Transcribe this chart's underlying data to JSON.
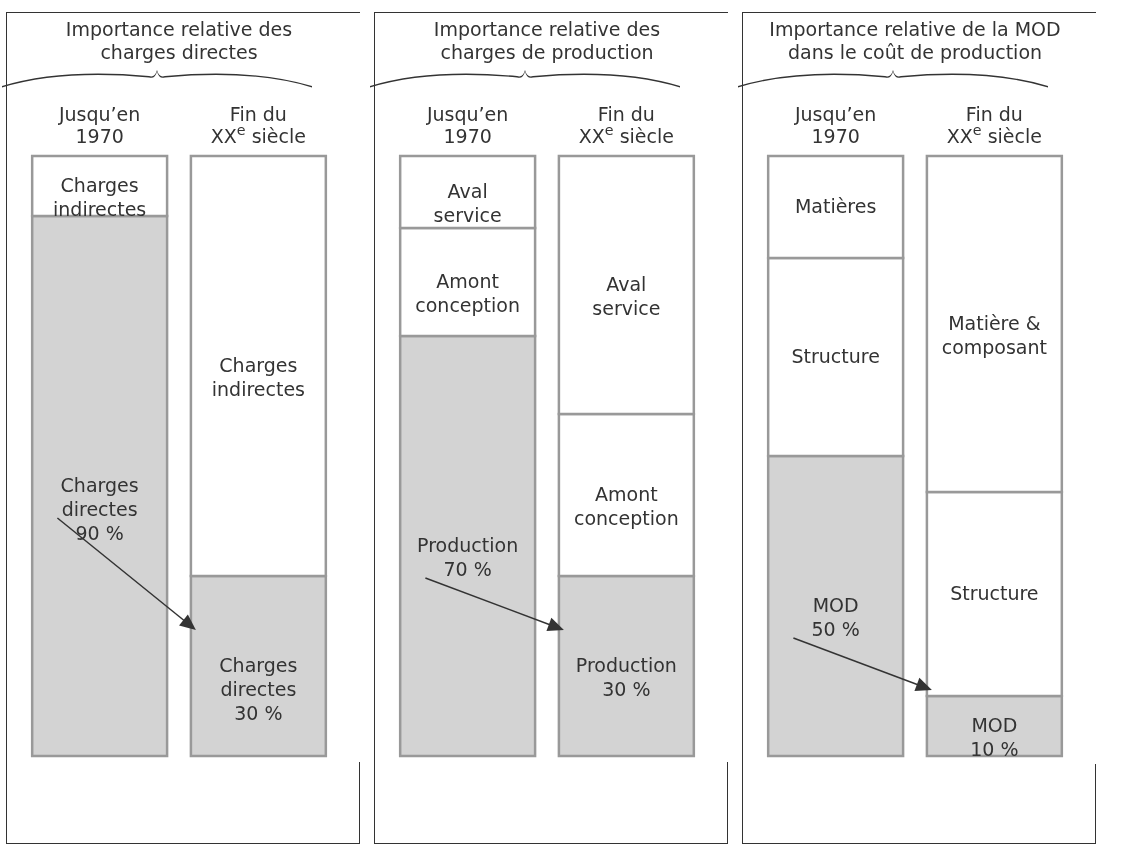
{
  "chart_data": [
    {
      "type": "bar",
      "stacked": true,
      "title": "Importance relative des\ncharges directes",
      "categories": [
        "Jusqu’en\n1970",
        "Fin du\nXX$^{e}$ siècle"
      ],
      "ylim": [
        0,
        100
      ],
      "tick_labels": "x",
      "series": [
        {
          "name": "Charges\ndirectes",
          "color": "#d3d3d3",
          "values": [
            90,
            30
          ],
          "value_labels": [
            "90 %",
            "30 %"
          ]
        },
        {
          "name": "Charges\nindirectes",
          "color": "#ffffff",
          "values": [
            10,
            70
          ]
        }
      ]
    },
    {
      "type": "bar",
      "stacked": true,
      "title": "Importance relative des\ncharges de production",
      "categories": [
        "Jusqu’en\n1970",
        "Fin du\nXX$^{e}$ siècle"
      ],
      "ylim": [
        0,
        100
      ],
      "tick_labels": "x",
      "series": [
        {
          "name": "Production",
          "color": "#d3d3d3",
          "values": [
            70,
            30
          ],
          "value_labels": [
            "70 %",
            "30 %"
          ]
        },
        {
          "name": "Amont\nconception",
          "color": "#ffffff",
          "values": [
            18,
            27
          ]
        },
        {
          "name": "Aval\nservice",
          "color": "#ffffff",
          "values": [
            12,
            43
          ]
        }
      ]
    },
    {
      "type": "bar",
      "stacked": true,
      "title": "Importance relative de la MOD\ndans le coût de production",
      "categories": [
        "Jusqu’en\n1970",
        "Fin du\nXX$^{e}$ siècle"
      ],
      "ylim": [
        0,
        100
      ],
      "tick_labels": "x",
      "series": [
        {
          "name": "MOD",
          "color": "#d3d3d3",
          "values": [
            50,
            10
          ],
          "value_labels": [
            "50 %",
            "10 %"
          ]
        },
        {
          "name": "Structure",
          "color": "#ffffff",
          "values": [
            33,
            34
          ]
        },
        {
          "name": "Matières",
          "color": "#ffffff",
          "values": [
            17,
            null
          ]
        },
        {
          "name": "Matière &\ncomposant",
          "color": "#ffffff",
          "values": [
            null,
            56
          ]
        }
      ]
    }
  ]
}
